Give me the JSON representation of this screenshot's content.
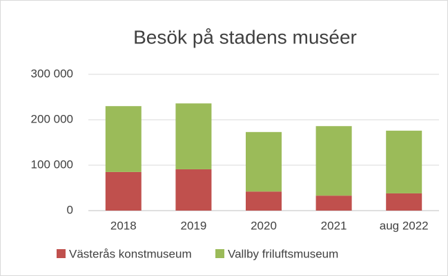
{
  "chart_data": {
    "type": "stacked_bar",
    "title": "Besök på stadens muséer",
    "categories": [
      "2018",
      "2019",
      "2020",
      "2021",
      "aug 2022"
    ],
    "series": [
      {
        "name": "Västerås konstmuseum",
        "color": "#c0504d",
        "values": [
          85000,
          91000,
          42000,
          33000,
          38000
        ]
      },
      {
        "name": "Vallby friluftsmuseum",
        "color": "#9bbb59",
        "values": [
          145000,
          145000,
          131000,
          153000,
          138000
        ]
      }
    ],
    "ylim": [
      0,
      300000
    ],
    "yticks": [
      0,
      {
        "value": 100000,
        "label": "100 000"
      },
      {
        "value": 200000,
        "label": "200 000"
      },
      {
        "value": 300000,
        "label": "300 000"
      }
    ],
    "grid": true,
    "legend": "bottom"
  }
}
